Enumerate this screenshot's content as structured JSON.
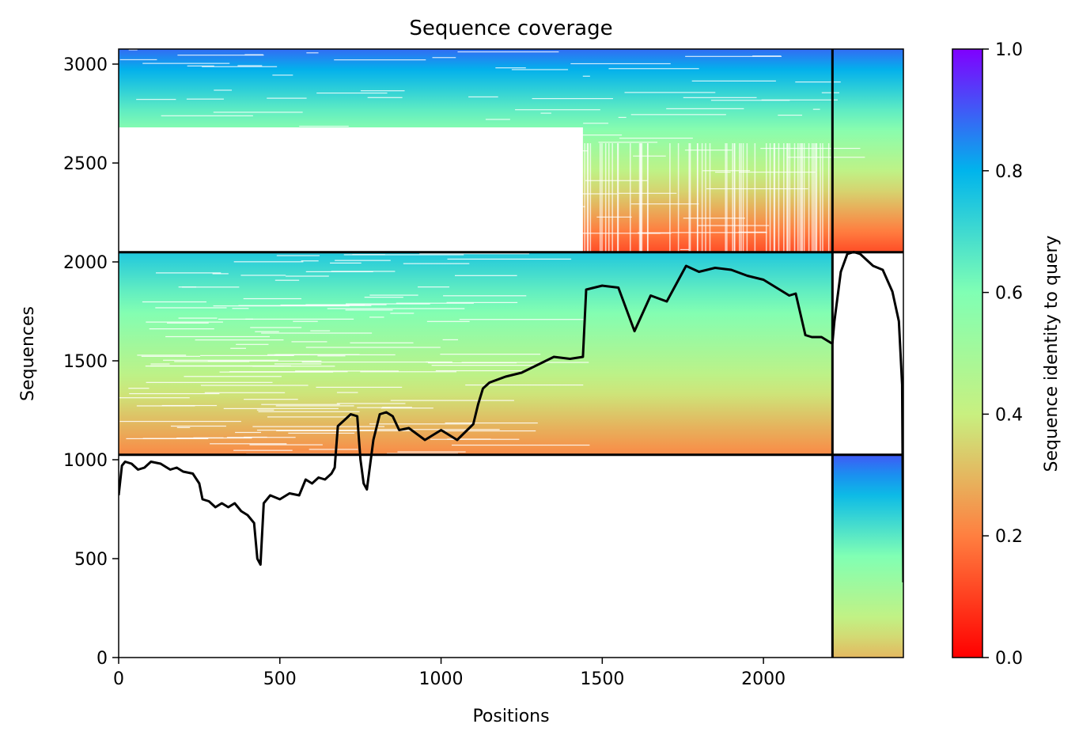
{
  "chart_data": {
    "type": "heatmap",
    "title": "Sequence coverage",
    "xlabel": "Positions",
    "ylabel": "Sequences",
    "xlim": [
      0,
      2434
    ],
    "ylim": [
      0,
      3076
    ],
    "xticks": [
      "0",
      "500",
      "1000",
      "1500",
      "2000"
    ],
    "yticks": [
      "0",
      "500",
      "1000",
      "1500",
      "2000",
      "2500",
      "3000"
    ],
    "colorbar": {
      "label": "Sequence identity to query",
      "range": [
        0,
        1
      ],
      "ticks": [
        "0.0",
        "0.2",
        "0.4",
        "0.6",
        "0.8",
        "1.0"
      ],
      "colormap": "rainbow_r",
      "colors": [
        "#ff0000",
        "#ff7f40",
        "#c8f080",
        "#80ffb4",
        "#00b4ec",
        "#8000ff"
      ]
    },
    "chain_boundaries_x": [
      2214
    ],
    "block_boundaries_y": [
      1025,
      2049
    ],
    "blocks": [
      {
        "name": "block-bottom",
        "y_range": [
          0,
          1025
        ],
        "covered_x": [
          2214,
          2434
        ],
        "identity_top": 0.9,
        "identity_bottom": 0.3
      },
      {
        "name": "block-middle",
        "y_range": [
          1025,
          2049
        ],
        "covered_x": [
          0,
          2214
        ],
        "identity_top": 0.75,
        "identity_bottom": 0.22
      },
      {
        "name": "block-top",
        "y_range": [
          2049,
          3076
        ],
        "covered_x": [
          0,
          2434
        ],
        "identity_top": 0.88,
        "identity_bottom": 0.12
      }
    ],
    "coverage_line": {
      "x": [
        0,
        10,
        20,
        40,
        60,
        80,
        100,
        130,
        150,
        160,
        180,
        200,
        230,
        250,
        260,
        280,
        300,
        320,
        340,
        360,
        380,
        400,
        420,
        430,
        440,
        450,
        470,
        500,
        530,
        560,
        580,
        600,
        620,
        640,
        660,
        670,
        680,
        700,
        720,
        740,
        750,
        760,
        770,
        790,
        810,
        830,
        850,
        870,
        900,
        950,
        1000,
        1050,
        1100,
        1115,
        1130,
        1150,
        1200,
        1250,
        1300,
        1350,
        1400,
        1440,
        1450,
        1500,
        1550,
        1600,
        1650,
        1700,
        1760,
        1800,
        1850,
        1900,
        1950,
        2000,
        2050,
        2080,
        2100,
        2130,
        2150,
        2180,
        2210,
        2214,
        2220,
        2240,
        2260,
        2280,
        2300,
        2340,
        2370,
        2400,
        2420,
        2430,
        2434
      ],
      "y": [
        820,
        970,
        990,
        980,
        950,
        960,
        990,
        980,
        960,
        950,
        960,
        940,
        930,
        880,
        800,
        790,
        760,
        780,
        760,
        780,
        740,
        720,
        680,
        500,
        470,
        780,
        820,
        800,
        830,
        820,
        900,
        880,
        910,
        900,
        930,
        960,
        1170,
        1200,
        1230,
        1220,
        1000,
        880,
        850,
        1100,
        1230,
        1240,
        1220,
        1150,
        1160,
        1100,
        1150,
        1100,
        1180,
        1280,
        1360,
        1390,
        1420,
        1440,
        1480,
        1520,
        1510,
        1520,
        1860,
        1880,
        1870,
        1650,
        1830,
        1800,
        1980,
        1950,
        1970,
        1960,
        1930,
        1910,
        1860,
        1830,
        1840,
        1630,
        1620,
        1620,
        1590,
        1590,
        1700,
        1950,
        2040,
        2050,
        2040,
        1980,
        1960,
        1850,
        1700,
        1380,
        380
      ]
    }
  }
}
